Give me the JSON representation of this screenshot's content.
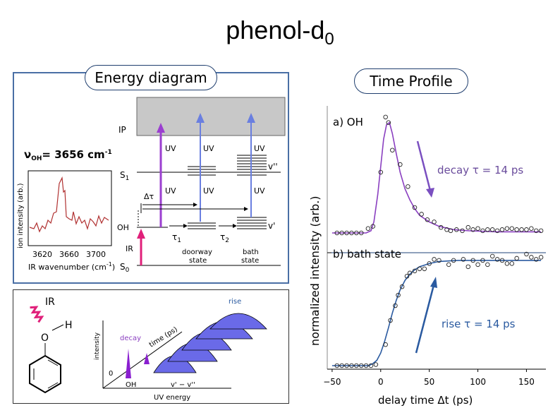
{
  "title": {
    "main": "phenol-d",
    "sub": "0"
  },
  "energy_panel": {
    "label": "Energy diagram",
    "nu_oh_label": "ν",
    "nu_oh_sub": "OH",
    "nu_oh_value": "= 3656 cm",
    "nu_oh_exp": "-1",
    "levels": {
      "ip": "IP",
      "s1": "S",
      "s1_sub": "1",
      "oh": "OH",
      "s0": "S",
      "s0_sub": "0",
      "v2": "v''",
      "v1": "v'"
    },
    "arrows": {
      "uv1": "UV",
      "uv2": "UV",
      "uv3": "UV",
      "uv4": "UV",
      "uv5": "UV",
      "uv6": "UV",
      "ir": "IR",
      "dt": "Δτ",
      "tau1": "τ",
      "tau1_sub": "1",
      "tau2": "τ",
      "tau2_sub": "2"
    },
    "states": {
      "doorway1": "doorway",
      "doorway2": "state",
      "bath1": "bath",
      "bath2": "state"
    },
    "ir_spectrum": {
      "ylabel": "ion intensity (arb.)",
      "xlabel": "IR wavenumber (cm",
      "xlabel_exp": "-1",
      "xlabel_end": ")",
      "xticks": [
        "3620",
        "3660",
        "3700"
      ]
    }
  },
  "schema_panel": {
    "ir": "IR",
    "h": "H",
    "o": "O",
    "intensity": "intensity",
    "time": "time (ps)",
    "decay": "decay",
    "rise": "rise",
    "zero": "0",
    "oh": "OH",
    "vdiff": "v' − v''",
    "uv_energy": "UV energy"
  },
  "time_profile": {
    "label": "Time Profile",
    "annotation_oh": "decay τ = 14 ps",
    "annotation_bath": "rise  τ = 14 ps",
    "colors": {
      "oh": "#8a3fc0",
      "bath": "#2a5aa0",
      "points": "#222"
    }
  },
  "chart_data": [
    {
      "type": "scatter",
      "title": "a) OH",
      "xlabel": "delay time Δt (ps)",
      "ylabel": "normalized intensity (arb.)",
      "xlim": [
        -55,
        170
      ],
      "ylim": [
        0,
        1.1
      ],
      "xticks": [
        "−50",
        "0",
        "50",
        "100",
        "150"
      ],
      "points": [
        [
          -45,
          0
        ],
        [
          -40,
          0
        ],
        [
          -35,
          0
        ],
        [
          -30,
          0
        ],
        [
          -25,
          0
        ],
        [
          -20,
          0
        ],
        [
          -13,
          0.04
        ],
        [
          -8,
          0.06
        ],
        [
          0,
          0.55
        ],
        [
          5,
          1.05
        ],
        [
          8,
          1.0
        ],
        [
          12,
          0.75
        ],
        [
          20,
          0.62
        ],
        [
          28,
          0.42
        ],
        [
          35,
          0.23
        ],
        [
          42,
          0.17
        ],
        [
          48,
          0.12
        ],
        [
          55,
          0.1
        ],
        [
          62,
          0.05
        ],
        [
          68,
          0.03
        ],
        [
          72,
          0.02
        ],
        [
          78,
          0.03
        ],
        [
          84,
          0.02
        ],
        [
          90,
          0.05
        ],
        [
          95,
          0.03
        ],
        [
          100,
          0.04
        ],
        [
          105,
          0.02
        ],
        [
          110,
          0.03
        ],
        [
          115,
          0.03
        ],
        [
          120,
          0.02
        ],
        [
          125,
          0.03
        ],
        [
          130,
          0.04
        ],
        [
          135,
          0.04
        ],
        [
          140,
          0.03
        ],
        [
          145,
          0.03
        ],
        [
          150,
          0.03
        ],
        [
          155,
          0.04
        ],
        [
          160,
          0.02
        ],
        [
          165,
          0.02
        ]
      ],
      "fit": [
        [
          -50,
          0
        ],
        [
          -15,
          0
        ],
        [
          -10,
          0.02
        ],
        [
          -7,
          0.1
        ],
        [
          -3,
          0.35
        ],
        [
          0,
          0.6
        ],
        [
          3,
          0.85
        ],
        [
          6,
          0.98
        ],
        [
          9,
          1.0
        ],
        [
          12,
          0.9
        ],
        [
          16,
          0.72
        ],
        [
          20,
          0.55
        ],
        [
          25,
          0.4
        ],
        [
          30,
          0.3
        ],
        [
          35,
          0.22
        ],
        [
          40,
          0.16
        ],
        [
          50,
          0.1
        ],
        [
          60,
          0.06
        ],
        [
          75,
          0.03
        ],
        [
          90,
          0.02
        ],
        [
          120,
          0.01
        ],
        [
          165,
          0.01
        ]
      ]
    },
    {
      "type": "scatter",
      "title": "b) bath state",
      "xlim": [
        -55,
        170
      ],
      "ylim": [
        0,
        1.1
      ],
      "points": [
        [
          -45,
          0
        ],
        [
          -40,
          0
        ],
        [
          -35,
          0
        ],
        [
          -30,
          0
        ],
        [
          -25,
          0
        ],
        [
          -20,
          0
        ],
        [
          -15,
          0
        ],
        [
          -10,
          0
        ],
        [
          -5,
          0.01
        ],
        [
          5,
          0.2
        ],
        [
          10,
          0.43
        ],
        [
          15,
          0.57
        ],
        [
          18,
          0.67
        ],
        [
          22,
          0.75
        ],
        [
          27,
          0.85
        ],
        [
          30,
          0.88
        ],
        [
          35,
          0.9
        ],
        [
          40,
          0.92
        ],
        [
          45,
          0.92
        ],
        [
          50,
          0.97
        ],
        [
          55,
          1.01
        ],
        [
          60,
          1.0
        ],
        [
          70,
          0.96
        ],
        [
          75,
          1.0
        ],
        [
          85,
          1.01
        ],
        [
          90,
          0.94
        ],
        [
          95,
          1.0
        ],
        [
          100,
          0.96
        ],
        [
          105,
          1.0
        ],
        [
          110,
          0.96
        ],
        [
          115,
          1.04
        ],
        [
          120,
          1.01
        ],
        [
          125,
          1.0
        ],
        [
          130,
          0.97
        ],
        [
          135,
          0.97
        ],
        [
          140,
          1.02
        ],
        [
          150,
          1.06
        ],
        [
          155,
          1.03
        ],
        [
          160,
          1.01
        ],
        [
          165,
          1.03
        ]
      ],
      "fit": [
        [
          -50,
          0
        ],
        [
          -12,
          0
        ],
        [
          -8,
          0.02
        ],
        [
          -4,
          0.05
        ],
        [
          0,
          0.12
        ],
        [
          4,
          0.23
        ],
        [
          8,
          0.36
        ],
        [
          12,
          0.5
        ],
        [
          16,
          0.62
        ],
        [
          20,
          0.72
        ],
        [
          25,
          0.81
        ],
        [
          30,
          0.87
        ],
        [
          35,
          0.91
        ],
        [
          40,
          0.94
        ],
        [
          50,
          0.97
        ],
        [
          60,
          0.99
        ],
        [
          80,
          1.0
        ],
        [
          165,
          1.0
        ]
      ]
    }
  ]
}
